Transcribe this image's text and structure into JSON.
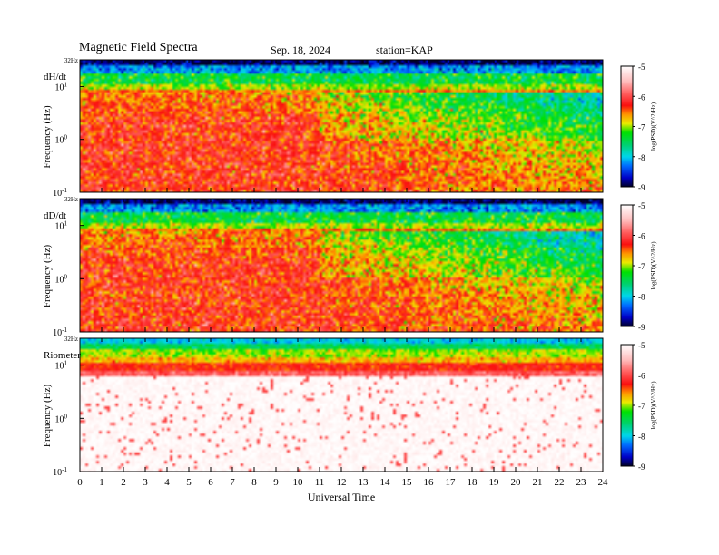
{
  "header": {
    "title": "Magnetic  Field  Spectra",
    "date": "Sep. 18, 2024",
    "station": "station=KAP"
  },
  "chart_data": [
    {
      "type": "heatmap",
      "panel_label": "dH/dt",
      "ylabel": "Frequency  (Hz)",
      "xlabel": "",
      "top_label": "32Hz",
      "y_scale": "log",
      "ylim": [
        0.1,
        32
      ],
      "y_ticks": [
        {
          "value": 0.1,
          "base": "10",
          "exp": "-1"
        },
        {
          "value": 1,
          "base": "10",
          "exp": "0"
        },
        {
          "value": 10,
          "base": "10",
          "exp": "1"
        }
      ],
      "x_ticks": [
        "0",
        "1",
        "2",
        "3",
        "4",
        "5",
        "6",
        "7",
        "8",
        "9",
        "10",
        "11",
        "12",
        "13",
        "14",
        "15",
        "16",
        "17",
        "18",
        "19",
        "20",
        "21",
        "22",
        "23",
        "24"
      ],
      "xlim": [
        0,
        24
      ],
      "colorbar": {
        "label": "log(PSD)(V^2/Hz)",
        "range": [
          -9,
          -5
        ],
        "ticks": [
          "-5",
          "-6",
          "-7",
          "-8",
          "-9"
        ]
      }
    },
    {
      "type": "heatmap",
      "panel_label": "dD/dt",
      "ylabel": "Frequency  (Hz)",
      "xlabel": "",
      "top_label": "32Hz",
      "y_scale": "log",
      "ylim": [
        0.1,
        32
      ],
      "y_ticks": [
        {
          "value": 0.1,
          "base": "10",
          "exp": "-1"
        },
        {
          "value": 1,
          "base": "10",
          "exp": "0"
        },
        {
          "value": 10,
          "base": "10",
          "exp": "1"
        }
      ],
      "x_ticks": [
        "0",
        "1",
        "2",
        "3",
        "4",
        "5",
        "6",
        "7",
        "8",
        "9",
        "10",
        "11",
        "12",
        "13",
        "14",
        "15",
        "16",
        "17",
        "18",
        "19",
        "20",
        "21",
        "22",
        "23",
        "24"
      ],
      "xlim": [
        0,
        24
      ],
      "colorbar": {
        "label": "log(PSD)(V^2/Hz)",
        "range": [
          -9,
          -5
        ],
        "ticks": [
          "-5",
          "-6",
          "-7",
          "-8",
          "-9"
        ]
      }
    },
    {
      "type": "heatmap",
      "panel_label": "Riometer",
      "ylabel": "Frequency  (Hz)",
      "xlabel": "Universal Time",
      "top_label": "32Hz",
      "y_scale": "log",
      "ylim": [
        0.1,
        32
      ],
      "y_ticks": [
        {
          "value": 0.1,
          "base": "10",
          "exp": "-1"
        },
        {
          "value": 1,
          "base": "10",
          "exp": "0"
        },
        {
          "value": 10,
          "base": "10",
          "exp": "1"
        }
      ],
      "x_ticks": [
        "0",
        "1",
        "2",
        "3",
        "4",
        "5",
        "6",
        "7",
        "8",
        "9",
        "10",
        "11",
        "12",
        "13",
        "14",
        "15",
        "16",
        "17",
        "18",
        "19",
        "20",
        "21",
        "22",
        "23",
        "24"
      ],
      "xlim": [
        0,
        24
      ],
      "colorbar": {
        "label": "log(PSD)(V^2/Hz)",
        "range": [
          -9,
          -5
        ],
        "ticks": [
          "-5",
          "-6",
          "-7",
          "-8",
          "-9"
        ]
      }
    }
  ]
}
